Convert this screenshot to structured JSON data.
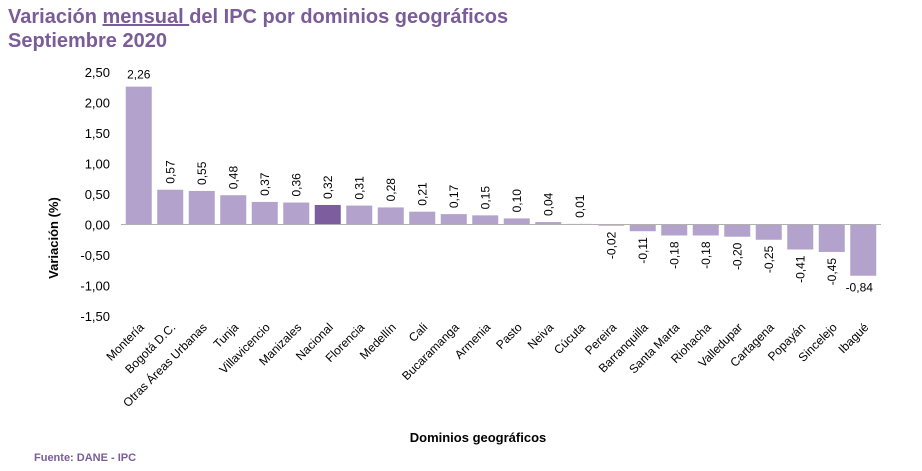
{
  "title": {
    "line1_pre": "Variación ",
    "line1_underlined": "mensual ",
    "line1_post": "del IPC por dominios geográficos",
    "line2": "Septiembre 2020"
  },
  "source": "Fuente: DANE - IPC",
  "colors": {
    "bar": "#b3a2cc",
    "highlight": "#7d5d9e",
    "title": "#7a5c99"
  },
  "chart_data": {
    "type": "bar",
    "title": "Variación mensual del IPC por dominios geográficos Septiembre 2020",
    "xlabel": "Dominios geográficos",
    "ylabel": "Variación (%)",
    "ylim": [
      -1.5,
      2.5
    ],
    "yticks": [
      "2,50",
      "2,00",
      "1,50",
      "1,00",
      "0,50",
      "0,00",
      "-0,50",
      "-1,00",
      "-1,50"
    ],
    "ytick_values": [
      2.5,
      2.0,
      1.5,
      1.0,
      0.5,
      0.0,
      -0.5,
      -1.0,
      -1.5
    ],
    "grid": false,
    "legend": "none",
    "highlight": "Nacional",
    "categories": [
      "Montería",
      "Bogotá D.C.",
      "Otras Áreas Urbanas",
      "Tunja",
      "Villavicencio",
      "Manizales",
      "Nacional",
      "Florencia",
      "Medellín",
      "Cali",
      "Bucaramanga",
      "Armenia",
      "Pasto",
      "Neiva",
      "Cúcuta",
      "Pereira",
      "Barranquilla",
      "Santa Marta",
      "Riohacha",
      "Valledupar",
      "Cartagena",
      "Popayán",
      "Sincelejo",
      "Ibagué"
    ],
    "values": [
      2.26,
      0.57,
      0.55,
      0.48,
      0.37,
      0.36,
      0.32,
      0.31,
      0.28,
      0.21,
      0.17,
      0.15,
      0.1,
      0.04,
      0.01,
      -0.02,
      -0.11,
      -0.18,
      -0.18,
      -0.2,
      -0.25,
      -0.41,
      -0.45,
      -0.84
    ],
    "value_labels": [
      "2,26",
      "0,57",
      "0,55",
      "0,48",
      "0,37",
      "0,36",
      "0,32",
      "0,31",
      "0,28",
      "0,21",
      "0,17",
      "0,15",
      "0,10",
      "0,04",
      "0,01",
      "-0,02",
      "-0,11",
      "-0,18",
      "-0,18",
      "-0,20",
      "-0,25",
      "-0,41",
      "-0,45",
      "-0,84"
    ]
  }
}
